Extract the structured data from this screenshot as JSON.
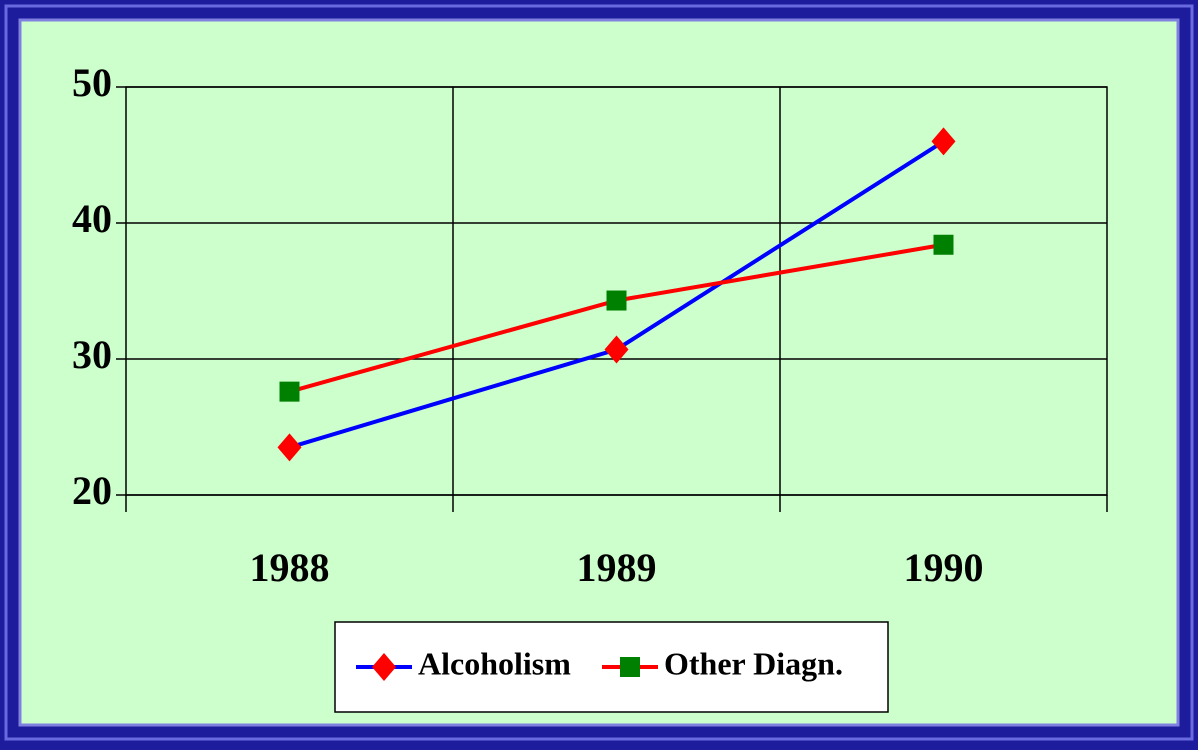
{
  "chart_data": {
    "type": "line",
    "categories": [
      "1988",
      "1989",
      "1990"
    ],
    "series": [
      {
        "name": "Alcoholism",
        "color": "#0000ff",
        "marker": "diamond",
        "marker_color": "#ff0000",
        "values": [
          23.5,
          30.7,
          46.0
        ]
      },
      {
        "name": "Other Diagn.",
        "color": "#ff0000",
        "marker": "square",
        "marker_color": "#008000",
        "values": [
          27.6,
          34.3,
          38.4
        ]
      }
    ],
    "ylim": [
      20,
      50
    ],
    "yticks": [
      20,
      30,
      40,
      50
    ],
    "grid": true,
    "legend": "bottom"
  }
}
